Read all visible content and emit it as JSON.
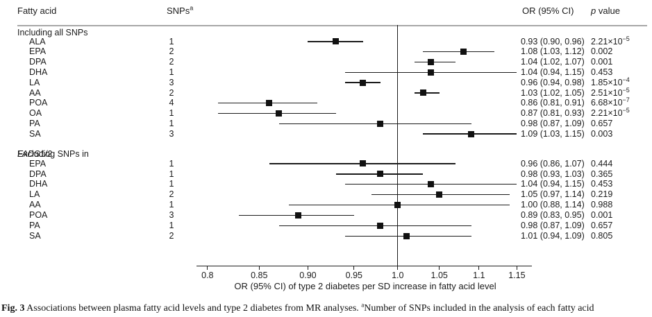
{
  "header": {
    "fatty_acid": "Fatty acid",
    "snps": "SNPs",
    "snps_sup": "a",
    "or_ci": "OR (95% CI)",
    "p_italic": "p",
    "p_rest": " value"
  },
  "caption": {
    "label": "Fig. 3",
    "text1": " Associations between plasma fatty acid levels and type 2 diabetes from MR analyses. ",
    "sup": "a",
    "text2": "Number of SNPs included in the analysis of each fatty acid"
  },
  "chart_data": {
    "type": "forest",
    "scale": "log",
    "x_axis": {
      "label": "OR (95% CI) of type 2 diabetes per SD increase in fatty acid level",
      "ticks": [
        0.8,
        0.85,
        0.9,
        0.95,
        1.0,
        1.05,
        1.1,
        1.15
      ],
      "tick_labels": [
        "0.8",
        "0.85",
        "0.90",
        "0.95",
        "1.0",
        "1.05",
        "1.1",
        "1.15"
      ],
      "range": [
        0.78,
        1.17
      ],
      "reference_line": 1.0
    },
    "sections": [
      {
        "title": "Including all SNPs",
        "title_italic": "",
        "rows": [
          {
            "label": "ALA",
            "snps": "1",
            "or": 0.93,
            "lo": 0.9,
            "hi": 0.96,
            "or_text": "0.93 (0.90, 0.96)",
            "p": "2.21×10",
            "p_exp": "−5"
          },
          {
            "label": "EPA",
            "snps": "2",
            "or": 1.08,
            "lo": 1.03,
            "hi": 1.12,
            "or_text": "1.08 (1.03, 1.12)",
            "p": "0.002",
            "p_exp": ""
          },
          {
            "label": "DPA",
            "snps": "2",
            "or": 1.04,
            "lo": 1.02,
            "hi": 1.07,
            "or_text": "1.04 (1.02, 1.07)",
            "p": "0.001",
            "p_exp": ""
          },
          {
            "label": "DHA",
            "snps": "1",
            "or": 1.04,
            "lo": 0.94,
            "hi": 1.15,
            "or_text": "1.04 (0.94, 1.15)",
            "p": "0.453",
            "p_exp": ""
          },
          {
            "label": "LA",
            "snps": "3",
            "or": 0.96,
            "lo": 0.94,
            "hi": 0.98,
            "or_text": "0.96 (0.94, 0.98)",
            "p": "1.85×10",
            "p_exp": "−4"
          },
          {
            "label": "AA",
            "snps": "2",
            "or": 1.03,
            "lo": 1.02,
            "hi": 1.05,
            "or_text": "1.03 (1.02, 1.05)",
            "p": "2.51×10",
            "p_exp": "−5"
          },
          {
            "label": "POA",
            "snps": "4",
            "or": 0.86,
            "lo": 0.81,
            "hi": 0.91,
            "or_text": "0.86 (0.81, 0.91)",
            "p": "6.68×10",
            "p_exp": "−7"
          },
          {
            "label": "OA",
            "snps": "1",
            "or": 0.87,
            "lo": 0.81,
            "hi": 0.93,
            "or_text": "0.87 (0.81, 0.93)",
            "p": "2.21×10",
            "p_exp": "−5"
          },
          {
            "label": "PA",
            "snps": "1",
            "or": 0.98,
            "lo": 0.87,
            "hi": 1.09,
            "or_text": "0.98 (0.87, 1.09)",
            "p": "0.657",
            "p_exp": ""
          },
          {
            "label": "SA",
            "snps": "3",
            "or": 1.09,
            "lo": 1.03,
            "hi": 1.15,
            "or_text": "1.09 (1.03, 1.15)",
            "p": "0.003",
            "p_exp": ""
          }
        ]
      },
      {
        "title": "Excluding SNPs in ",
        "title_italic": "FADS1/2",
        "rows": [
          {
            "label": "EPA",
            "snps": "1",
            "or": 0.96,
            "lo": 0.86,
            "hi": 1.07,
            "or_text": "0.96 (0.86, 1.07)",
            "p": "0.444",
            "p_exp": ""
          },
          {
            "label": "DPA",
            "snps": "1",
            "or": 0.98,
            "lo": 0.93,
            "hi": 1.03,
            "or_text": "0.98 (0.93, 1.03)",
            "p": "0.365",
            "p_exp": ""
          },
          {
            "label": "DHA",
            "snps": "1",
            "or": 1.04,
            "lo": 0.94,
            "hi": 1.15,
            "or_text": "1.04 (0.94, 1.15)",
            "p": "0.453",
            "p_exp": ""
          },
          {
            "label": "LA",
            "snps": "2",
            "or": 1.05,
            "lo": 0.97,
            "hi": 1.14,
            "or_text": "1.05 (0.97, 1.14)",
            "p": "0.219",
            "p_exp": ""
          },
          {
            "label": "AA",
            "snps": "1",
            "or": 1.0,
            "lo": 0.88,
            "hi": 1.14,
            "or_text": "1.00 (0.88, 1.14)",
            "p": "0.988",
            "p_exp": ""
          },
          {
            "label": "POA",
            "snps": "3",
            "or": 0.89,
            "lo": 0.83,
            "hi": 0.95,
            "or_text": "0.89 (0.83, 0.95)",
            "p": "0.001",
            "p_exp": ""
          },
          {
            "label": "PA",
            "snps": "1",
            "or": 0.98,
            "lo": 0.87,
            "hi": 1.09,
            "or_text": "0.98 (0.87, 1.09)",
            "p": "0.657",
            "p_exp": ""
          },
          {
            "label": "SA",
            "snps": "2",
            "or": 1.01,
            "lo": 0.94,
            "hi": 1.09,
            "or_text": "1.01 (0.94, 1.09)",
            "p": "0.805",
            "p_exp": ""
          }
        ]
      }
    ]
  }
}
